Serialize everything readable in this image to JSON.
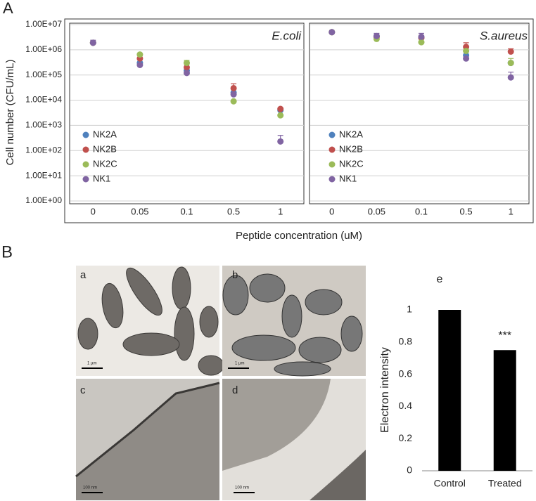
{
  "panel_labels": [
    "A",
    "B"
  ],
  "micrographs": {
    "labels": [
      "a",
      "b",
      "c",
      "d"
    ],
    "scale_bars": [
      "1 µm",
      "1 µm",
      "100 nm",
      "100 nm"
    ]
  },
  "chart_data": [
    {
      "type": "scatter",
      "title": "E.coli",
      "y_label": "Cell number (CFU/mL)",
      "x_label": "Peptide concentration (uM)",
      "log_y": true,
      "grid": true,
      "legend": "lower-left",
      "categories": [
        "0",
        "0.05",
        "0.1",
        "0.5",
        "1"
      ],
      "ylim": [
        1,
        10000000
      ],
      "yticks": [
        {
          "value": 1,
          "label": "1.00E+00"
        },
        {
          "value": 10,
          "label": "1.00E+01"
        },
        {
          "value": 100,
          "label": "1.00E+02"
        },
        {
          "value": 1000,
          "label": "1.00E+03"
        },
        {
          "value": 10000,
          "label": "1.00E+04"
        },
        {
          "value": 100000,
          "label": "1.00E+05"
        },
        {
          "value": 1000000,
          "label": "1.00E+06"
        },
        {
          "value": 10000000,
          "label": "1.00E+07"
        }
      ],
      "series": [
        {
          "name": "NK2A",
          "color": "#4f81bd",
          "values": [
            1900000,
            300000,
            150000,
            20000,
            4000
          ],
          "errors": [
            null,
            null,
            null,
            null,
            null
          ]
        },
        {
          "name": "NK2B",
          "color": "#c0504d",
          "values": [
            1900000,
            450000,
            200000,
            30000,
            4500
          ],
          "errors": [
            null,
            null,
            null,
            15000,
            null
          ]
        },
        {
          "name": "NK2C",
          "color": "#9bbb59",
          "values": [
            1900000,
            650000,
            300000,
            9000,
            2500
          ],
          "errors": [
            null,
            null,
            80000,
            null,
            null
          ]
        },
        {
          "name": "NK1",
          "color": "#8064a2",
          "values": [
            1900000,
            250000,
            120000,
            17000,
            230
          ],
          "errors": [
            500000,
            null,
            null,
            null,
            170
          ]
        }
      ]
    },
    {
      "type": "scatter",
      "title": "S.aureus",
      "log_y": true,
      "grid": true,
      "legend": "lower-left",
      "categories": [
        "0",
        "0.05",
        "0.1",
        "0.5",
        "1"
      ],
      "ylim": [
        1,
        10000000
      ],
      "series": [
        {
          "name": "NK2A",
          "color": "#4f81bd",
          "values": [
            5000000,
            3500000,
            3000000,
            600000,
            300000
          ],
          "errors": [
            null,
            null,
            null,
            null,
            null
          ]
        },
        {
          "name": "NK2B",
          "color": "#c0504d",
          "values": [
            5000000,
            3200000,
            3000000,
            1300000,
            850000
          ],
          "errors": [
            null,
            null,
            null,
            600000,
            250000
          ]
        },
        {
          "name": "NK2C",
          "color": "#9bbb59",
          "values": [
            5000000,
            2700000,
            2000000,
            900000,
            300000
          ],
          "errors": [
            null,
            null,
            null,
            null,
            150000
          ]
        },
        {
          "name": "NK1",
          "color": "#8064a2",
          "values": [
            5000000,
            3500000,
            3300000,
            450000,
            80000
          ],
          "errors": [
            null,
            1000000,
            1200000,
            null,
            50000
          ]
        }
      ]
    },
    {
      "type": "bar",
      "panel_label": "e",
      "y_label": "Electron intensity",
      "annotation": "***",
      "categories": [
        "Control",
        "Treated"
      ],
      "values": [
        1,
        0.75
      ],
      "color": "#000000",
      "ylim": [
        0,
        1
      ],
      "yticks": [
        0,
        0.2,
        0.4,
        0.6,
        0.8,
        1
      ]
    }
  ]
}
